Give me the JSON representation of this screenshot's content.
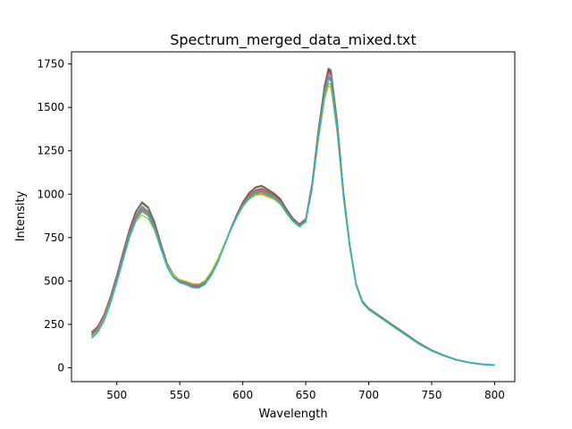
{
  "chart_data": {
    "type": "line",
    "title": "Spectrum_merged_data_mixed.txt",
    "xlabel": "Wavelength",
    "ylabel": "Intensity",
    "xlim": [
      464,
      816
    ],
    "ylim": [
      -80,
      1820
    ],
    "xticks": [
      500,
      550,
      600,
      650,
      700,
      750,
      800
    ],
    "yticks": [
      0,
      250,
      500,
      750,
      1000,
      1250,
      1500,
      1750
    ],
    "grid": false,
    "legend": "none",
    "x": [
      480,
      485,
      490,
      495,
      500,
      505,
      510,
      515,
      520,
      525,
      530,
      535,
      540,
      545,
      550,
      555,
      560,
      565,
      570,
      575,
      580,
      585,
      590,
      595,
      600,
      605,
      610,
      615,
      620,
      625,
      630,
      635,
      640,
      645,
      650,
      655,
      660,
      665,
      668,
      670,
      675,
      680,
      685,
      690,
      695,
      700,
      710,
      720,
      730,
      740,
      750,
      760,
      770,
      780,
      790,
      800
    ],
    "series": [
      {
        "color": "#1f77b4",
        "values": [
          195,
          230,
          300,
          400,
          520,
          650,
          780,
          880,
          930,
          900,
          820,
          700,
          590,
          530,
          500,
          485,
          470,
          470,
          490,
          540,
          610,
          700,
          790,
          870,
          940,
          990,
          1020,
          1030,
          1010,
          990,
          960,
          900,
          850,
          820,
          850,
          1050,
          1350,
          1600,
          1700,
          1690,
          1400,
          1000,
          700,
          480,
          380,
          340,
          290,
          240,
          190,
          140,
          100,
          70,
          45,
          30,
          20,
          15
        ]
      },
      {
        "color": "#ff7f0e",
        "values": [
          180,
          215,
          285,
          385,
          505,
          635,
          765,
          860,
          905,
          880,
          805,
          690,
          590,
          530,
          505,
          495,
          480,
          478,
          498,
          550,
          620,
          705,
          790,
          865,
          930,
          975,
          1000,
          1005,
          990,
          975,
          945,
          890,
          845,
          815,
          845,
          1035,
          1320,
          1560,
          1640,
          1630,
          1360,
          980,
          690,
          475,
          375,
          335,
          285,
          235,
          185,
          136,
          97,
          68,
          44,
          29,
          19,
          14
        ]
      },
      {
        "color": "#2ca02c",
        "values": [
          200,
          235,
          305,
          408,
          530,
          662,
          792,
          895,
          948,
          918,
          835,
          712,
          598,
          534,
          502,
          482,
          465,
          463,
          485,
          536,
          607,
          698,
          792,
          875,
          950,
          1002,
          1035,
          1045,
          1022,
          1000,
          968,
          908,
          856,
          825,
          855,
          1058,
          1365,
          1625,
          1720,
          1710,
          1415,
          1010,
          705,
          482,
          382,
          342,
          292,
          242,
          192,
          142,
          101,
          71,
          46,
          30,
          20,
          15
        ]
      },
      {
        "color": "#d62728",
        "values": [
          190,
          225,
          295,
          395,
          515,
          645,
          775,
          872,
          920,
          892,
          815,
          698,
          588,
          528,
          498,
          482,
          468,
          468,
          488,
          538,
          608,
          700,
          792,
          872,
          942,
          992,
          1022,
          1032,
          1012,
          992,
          962,
          902,
          852,
          822,
          852,
          1052,
          1355,
          1610,
          1712,
          1700,
          1405,
          1004,
          702,
          480,
          380,
          340,
          290,
          240,
          190,
          140,
          100,
          70,
          45,
          30,
          20,
          15
        ]
      },
      {
        "color": "#9467bd",
        "values": [
          185,
          220,
          290,
          392,
          510,
          640,
          770,
          868,
          915,
          888,
          812,
          695,
          590,
          532,
          503,
          490,
          476,
          474,
          494,
          546,
          615,
          702,
          790,
          868,
          935,
          982,
          1010,
          1018,
          1000,
          982,
          952,
          895,
          848,
          818,
          848,
          1042,
          1335,
          1580,
          1670,
          1660,
          1380,
          992,
          696,
          478,
          378,
          338,
          288,
          238,
          188,
          138,
          99,
          69,
          44,
          29,
          19,
          14
        ]
      },
      {
        "color": "#8c564b",
        "values": [
          205,
          240,
          310,
          412,
          535,
          668,
          798,
          900,
          955,
          925,
          840,
          716,
          600,
          536,
          504,
          484,
          466,
          465,
          487,
          538,
          610,
          702,
          796,
          880,
          955,
          1008,
          1040,
          1050,
          1028,
          1005,
          972,
          912,
          860,
          828,
          858,
          1062,
          1370,
          1630,
          1725,
          1715,
          1420,
          1012,
          706,
          483,
          383,
          343,
          293,
          243,
          193,
          143,
          102,
          71,
          46,
          31,
          21,
          16
        ]
      },
      {
        "color": "#e377c2",
        "values": [
          192,
          228,
          298,
          398,
          518,
          648,
          778,
          876,
          925,
          895,
          818,
          700,
          592,
          530,
          500,
          486,
          472,
          471,
          491,
          542,
          612,
          702,
          792,
          870,
          940,
          988,
          1016,
          1025,
          1006,
          987,
          957,
          899,
          850,
          820,
          850,
          1048,
          1345,
          1595,
          1690,
          1680,
          1395,
          1000,
          700,
          479,
          379,
          339,
          289,
          239,
          189,
          139,
          100,
          70,
          45,
          30,
          20,
          15
        ]
      },
      {
        "color": "#7f7f7f",
        "values": [
          188,
          222,
          292,
          394,
          512,
          642,
          772,
          870,
          918,
          890,
          814,
          697,
          591,
          531,
          502,
          488,
          474,
          472,
          492,
          544,
          614,
          700,
          788,
          866,
          936,
          985,
          1012,
          1020,
          1002,
          984,
          955,
          897,
          849,
          819,
          849,
          1045,
          1340,
          1588,
          1680,
          1670,
          1388,
          996,
          698,
          478,
          378,
          338,
          288,
          238,
          188,
          138,
          99,
          69,
          45,
          30,
          20,
          15
        ]
      },
      {
        "color": "#bcbd22",
        "values": [
          178,
          212,
          280,
          378,
          495,
          622,
          748,
          840,
          880,
          858,
          790,
          682,
          588,
          532,
          508,
          498,
          485,
          482,
          502,
          554,
          624,
          708,
          792,
          866,
          928,
          970,
          994,
          998,
          984,
          970,
          940,
          886,
          842,
          812,
          842,
          1030,
          1310,
          1548,
          1625,
          1615,
          1350,
          975,
          688,
          474,
          374,
          334,
          284,
          234,
          184,
          135,
          96,
          67,
          43,
          28,
          19,
          14
        ]
      },
      {
        "color": "#17becf",
        "values": [
          170,
          205,
          272,
          372,
          492,
          622,
          752,
          850,
          900,
          875,
          800,
          686,
          578,
          518,
          490,
          478,
          462,
          460,
          480,
          532,
          604,
          694,
          786,
          864,
          932,
          978,
          1005,
          1012,
          996,
          978,
          948,
          890,
          842,
          812,
          840,
          1036,
          1330,
          1575,
          1662,
          1652,
          1372,
          988,
          694,
          476,
          376,
          336,
          286,
          236,
          186,
          137,
          98,
          68,
          44,
          29,
          19,
          14
        ]
      }
    ]
  }
}
